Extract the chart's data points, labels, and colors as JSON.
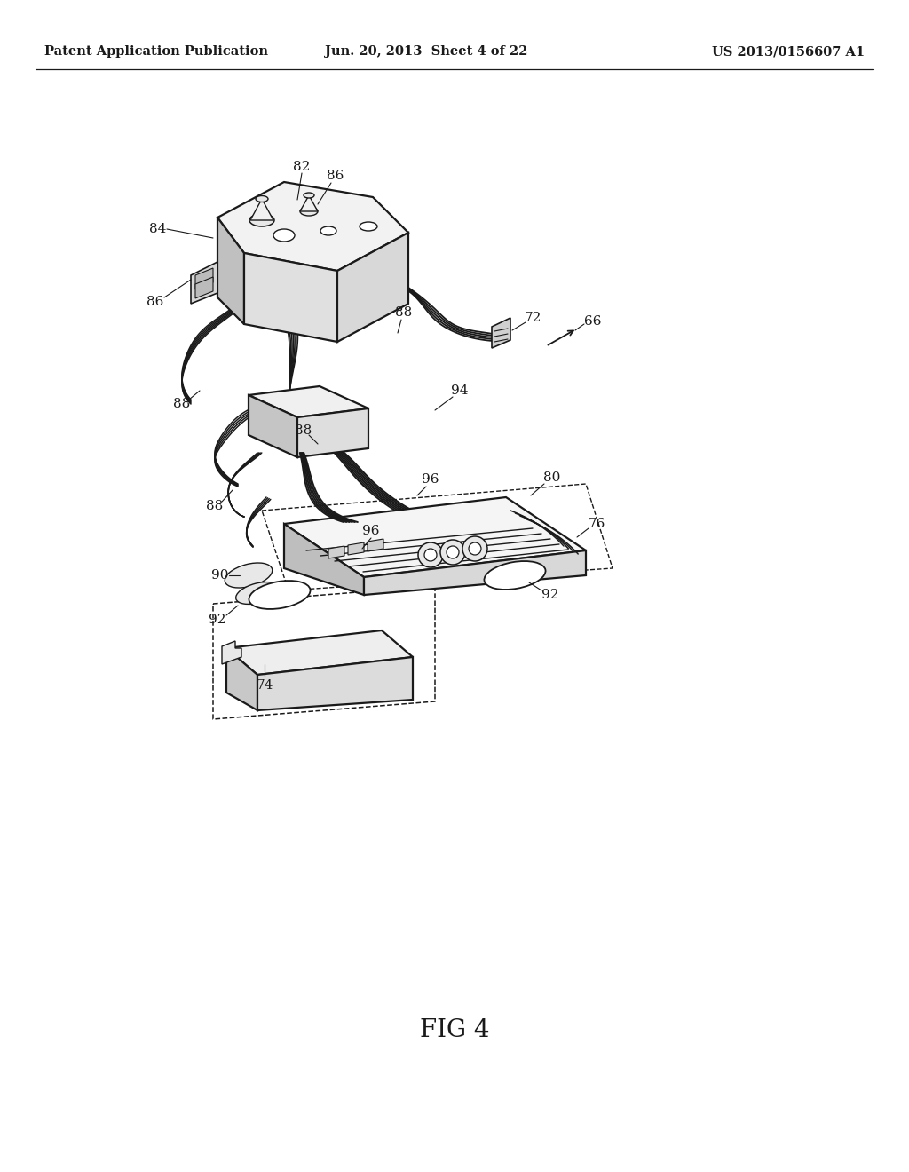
{
  "bg_color": "#ffffff",
  "header_left": "Patent Application Publication",
  "header_center": "Jun. 20, 2013  Sheet 4 of 22",
  "header_right": "US 2013/0156607 A1",
  "figure_label": "FIG 4",
  "header_fontsize": 10.5,
  "figure_label_fontsize": 20,
  "line_color": "#1a1a1a",
  "lw_thick": 1.6,
  "lw_wire": 1.1,
  "lw_thin": 0.9
}
